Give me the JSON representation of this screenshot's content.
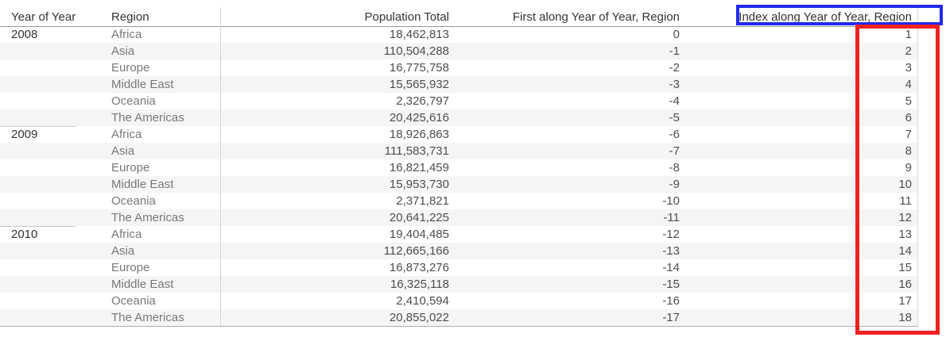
{
  "table": {
    "columns": [
      {
        "label": "Year of Year"
      },
      {
        "label": "Region"
      },
      {
        "label": "Population Total"
      },
      {
        "label": "First along Year of Year, Region"
      },
      {
        "label": "Index along Year of Year, Region"
      }
    ],
    "rows": [
      {
        "year": "2008",
        "region": "Africa",
        "population": "18,462,813",
        "first": "0",
        "index": "1"
      },
      {
        "year": "",
        "region": "Asia",
        "population": "110,504,288",
        "first": "-1",
        "index": "2"
      },
      {
        "year": "",
        "region": "Europe",
        "population": "16,775,758",
        "first": "-2",
        "index": "3"
      },
      {
        "year": "",
        "region": "Middle East",
        "population": "15,565,932",
        "first": "-3",
        "index": "4"
      },
      {
        "year": "",
        "region": "Oceania",
        "population": "2,326,797",
        "first": "-4",
        "index": "5"
      },
      {
        "year": "",
        "region": "The Americas",
        "population": "20,425,616",
        "first": "-5",
        "index": "6"
      },
      {
        "year": "2009",
        "region": "Africa",
        "population": "18,926,863",
        "first": "-6",
        "index": "7"
      },
      {
        "year": "",
        "region": "Asia",
        "population": "111,583,731",
        "first": "-7",
        "index": "8"
      },
      {
        "year": "",
        "region": "Europe",
        "population": "16,821,459",
        "first": "-8",
        "index": "9"
      },
      {
        "year": "",
        "region": "Middle East",
        "population": "15,953,730",
        "first": "-9",
        "index": "10"
      },
      {
        "year": "",
        "region": "Oceania",
        "population": "2,371,821",
        "first": "-10",
        "index": "11"
      },
      {
        "year": "",
        "region": "The Americas",
        "population": "20,641,225",
        "first": "-11",
        "index": "12"
      },
      {
        "year": "2010",
        "region": "Africa",
        "population": "19,404,485",
        "first": "-12",
        "index": "13"
      },
      {
        "year": "",
        "region": "Asia",
        "population": "112,665,166",
        "first": "-13",
        "index": "14"
      },
      {
        "year": "",
        "region": "Europe",
        "population": "16,873,276",
        "first": "-14",
        "index": "15"
      },
      {
        "year": "",
        "region": "Middle East",
        "population": "16,325,118",
        "first": "-15",
        "index": "16"
      },
      {
        "year": "",
        "region": "Oceania",
        "population": "2,410,594",
        "first": "-16",
        "index": "17"
      },
      {
        "year": "",
        "region": "The Americas",
        "population": "20,855,022",
        "first": "-17",
        "index": "18"
      }
    ]
  },
  "annotations": {
    "blue_box": {
      "target": "Index along Year of Year, Region column header",
      "color": "#2228ee"
    },
    "red_box": {
      "target": "Index column values 1-18",
      "color": "#ee2222"
    }
  },
  "colors": {
    "header_text": "#333333",
    "year_text": "#333333",
    "region_text": "#787878",
    "number_text": "#4e4e4e",
    "row_banding": "#f5f5f5",
    "divider": "#d7d7d7"
  }
}
